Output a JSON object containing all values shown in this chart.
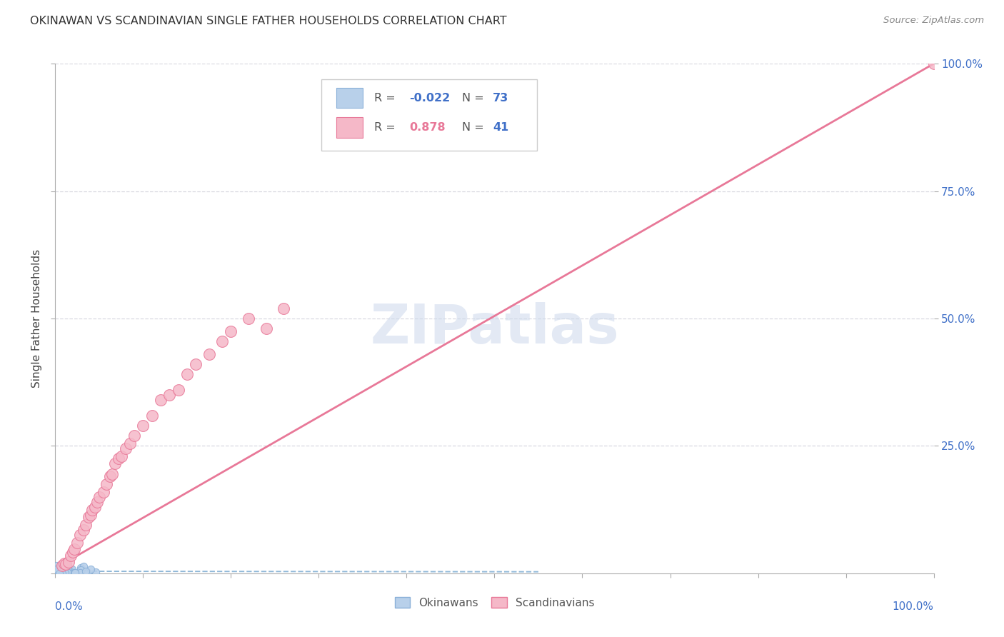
{
  "title": "OKINAWAN VS SCANDINAVIAN SINGLE FATHER HOUSEHOLDS CORRELATION CHART",
  "source": "Source: ZipAtlas.com",
  "ylabel": "Single Father Households",
  "watermark": "ZIPatlas",
  "okinawan_R": "-0.022",
  "okinawan_N": "73",
  "scandinavian_R": "0.878",
  "scandinavian_N": "41",
  "okinawan_dot_color": "#b8d0ea",
  "okinawan_edge_color": "#8ab0d8",
  "scandinavian_dot_color": "#f5b8c8",
  "scandinavian_edge_color": "#e87898",
  "okinawan_line_color": "#90b8d8",
  "scandinavian_line_color": "#e87898",
  "legend_blue": "#4070c8",
  "legend_pink": "#e87898",
  "ytick_color": "#4070c8",
  "xtick_color": "#4070c8",
  "grid_color": "#d8d8e0",
  "background_color": "#ffffff",
  "ylim": [
    0.0,
    1.0
  ],
  "xlim": [
    0.0,
    1.0
  ],
  "sc_x": [
    0.008,
    0.01,
    0.012,
    0.015,
    0.018,
    0.02,
    0.022,
    0.025,
    0.028,
    0.032,
    0.035,
    0.038,
    0.04,
    0.042,
    0.045,
    0.048,
    0.05,
    0.055,
    0.058,
    0.062,
    0.065,
    0.068,
    0.072,
    0.075,
    0.08,
    0.085,
    0.09,
    0.1,
    0.11,
    0.12,
    0.13,
    0.14,
    0.15,
    0.16,
    0.175,
    0.19,
    0.2,
    0.22,
    0.24,
    0.26,
    1.0
  ],
  "sc_y": [
    0.015,
    0.02,
    0.018,
    0.022,
    0.035,
    0.042,
    0.048,
    0.06,
    0.075,
    0.085,
    0.095,
    0.11,
    0.115,
    0.125,
    0.13,
    0.14,
    0.15,
    0.16,
    0.175,
    0.19,
    0.195,
    0.215,
    0.225,
    0.23,
    0.245,
    0.255,
    0.27,
    0.29,
    0.31,
    0.34,
    0.35,
    0.36,
    0.39,
    0.41,
    0.43,
    0.455,
    0.475,
    0.5,
    0.48,
    0.52,
    1.0
  ],
  "sc_line_x": [
    0.0,
    1.0
  ],
  "sc_line_y": [
    0.01,
    1.0
  ],
  "ok_line_x": [
    0.0,
    0.55
  ],
  "ok_line_y": [
    0.004,
    0.003
  ]
}
